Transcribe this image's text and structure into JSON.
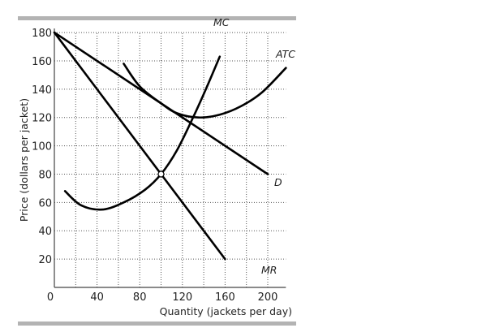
{
  "chart_data": {
    "type": "line",
    "xlabel": "Quantity (jackets per day)",
    "ylabel": "Price (dollars per jacket)",
    "xlim": [
      0,
      217
    ],
    "ylim": [
      0,
      180
    ],
    "xticks": [
      0,
      40,
      80,
      120,
      160,
      200
    ],
    "yticks": [
      20,
      40,
      60,
      80,
      100,
      120,
      140,
      160,
      180
    ],
    "grid": true,
    "grid_style": "dotted, every 20 units",
    "series": [
      {
        "name": "D",
        "points": [
          [
            0,
            180
          ],
          [
            200,
            80
          ]
        ]
      },
      {
        "name": "MR",
        "points": [
          [
            0,
            180
          ],
          [
            160,
            20
          ]
        ]
      },
      {
        "name": "MC",
        "points": [
          [
            10,
            68
          ],
          [
            25,
            58
          ],
          [
            45,
            55
          ],
          [
            65,
            60
          ],
          [
            85,
            69
          ],
          [
            100,
            80
          ],
          [
            115,
            97
          ],
          [
            130,
            120
          ],
          [
            142,
            140
          ],
          [
            155,
            163
          ]
        ]
      },
      {
        "name": "ATC",
        "points": [
          [
            65,
            158
          ],
          [
            80,
            142
          ],
          [
            100,
            130
          ],
          [
            115,
            123
          ],
          [
            135,
            120
          ],
          [
            155,
            122
          ],
          [
            175,
            128
          ],
          [
            195,
            138
          ],
          [
            217,
            155
          ]
        ]
      }
    ],
    "annotations": [
      {
        "label": "",
        "point": [
          100,
          80
        ],
        "marker": "open circle"
      }
    ],
    "colors": {
      "curves": "#000000",
      "grid": "#555555",
      "rule": "#b3b3b3"
    }
  }
}
